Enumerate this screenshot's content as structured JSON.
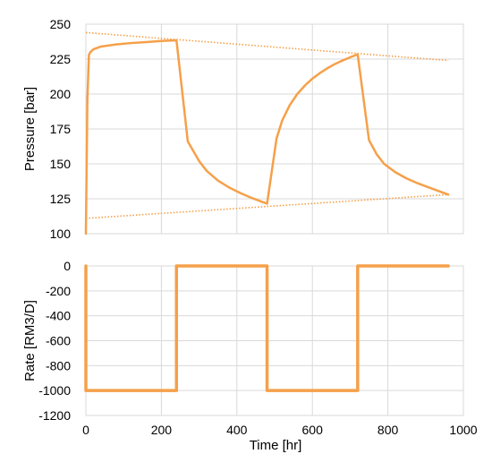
{
  "chart_data": [
    {
      "type": "line",
      "xlabel": "",
      "ylabel": "Pressure [bar]",
      "xlim": [
        0,
        1000
      ],
      "ylim": [
        100,
        250
      ],
      "x_ticks": [
        0,
        200,
        400,
        600,
        800,
        1000
      ],
      "y_ticks": [
        100,
        125,
        150,
        175,
        200,
        225,
        250
      ],
      "y_tick_labels": [
        "100",
        "125",
        "150",
        "175",
        "200",
        "225",
        "250"
      ],
      "grid": true,
      "line_color": "#f5a04a",
      "series": [
        {
          "style": "solid",
          "x": [
            0,
            4,
            8,
            12,
            20,
            40,
            80,
            120,
            160,
            200,
            240,
            270,
            300,
            320,
            350,
            380,
            410,
            440,
            460,
            480,
            505,
            520,
            540,
            560,
            580,
            600,
            620,
            640,
            660,
            680,
            700,
            720,
            750,
            770,
            790,
            820,
            850,
            880,
            910,
            940,
            960
          ],
          "y": [
            100,
            196,
            228,
            230,
            232,
            234,
            235.5,
            236.5,
            237.2,
            238,
            238.5,
            166,
            152,
            145,
            138,
            133,
            129,
            125.5,
            123.5,
            121.5,
            168,
            181,
            192,
            200,
            206,
            211,
            215,
            218.5,
            221.5,
            224,
            226.3,
            228.3,
            167,
            157,
            150,
            144,
            139.5,
            136,
            133,
            130,
            128
          ]
        },
        {
          "style": "dotted",
          "x": [
            0,
            960
          ],
          "y": [
            244,
            224
          ]
        },
        {
          "style": "dotted",
          "x": [
            0,
            960
          ],
          "y": [
            111,
            128
          ]
        }
      ]
    },
    {
      "type": "line",
      "xlabel": "Time [hr]",
      "ylabel": "Rate [RM3/D]",
      "xlim": [
        0,
        1000
      ],
      "ylim": [
        -1200,
        0
      ],
      "x_ticks": [
        0,
        200,
        400,
        600,
        800,
        1000
      ],
      "x_tick_labels": [
        "0",
        "200",
        "400",
        "600",
        "800",
        "1000"
      ],
      "y_ticks": [
        -1200,
        -1000,
        -800,
        -600,
        -400,
        -200,
        0
      ],
      "y_tick_labels": [
        "-1200",
        "-1000",
        "-800",
        "-600",
        "-400",
        "-200",
        "0"
      ],
      "grid": true,
      "line_color": "#f5a04a",
      "series": [
        {
          "style": "solid",
          "x": [
            0,
            0,
            240,
            240,
            480,
            480,
            720,
            720,
            960
          ],
          "y": [
            0,
            -1000,
            -1000,
            0,
            0,
            -1000,
            -1000,
            0,
            0
          ]
        }
      ]
    }
  ]
}
